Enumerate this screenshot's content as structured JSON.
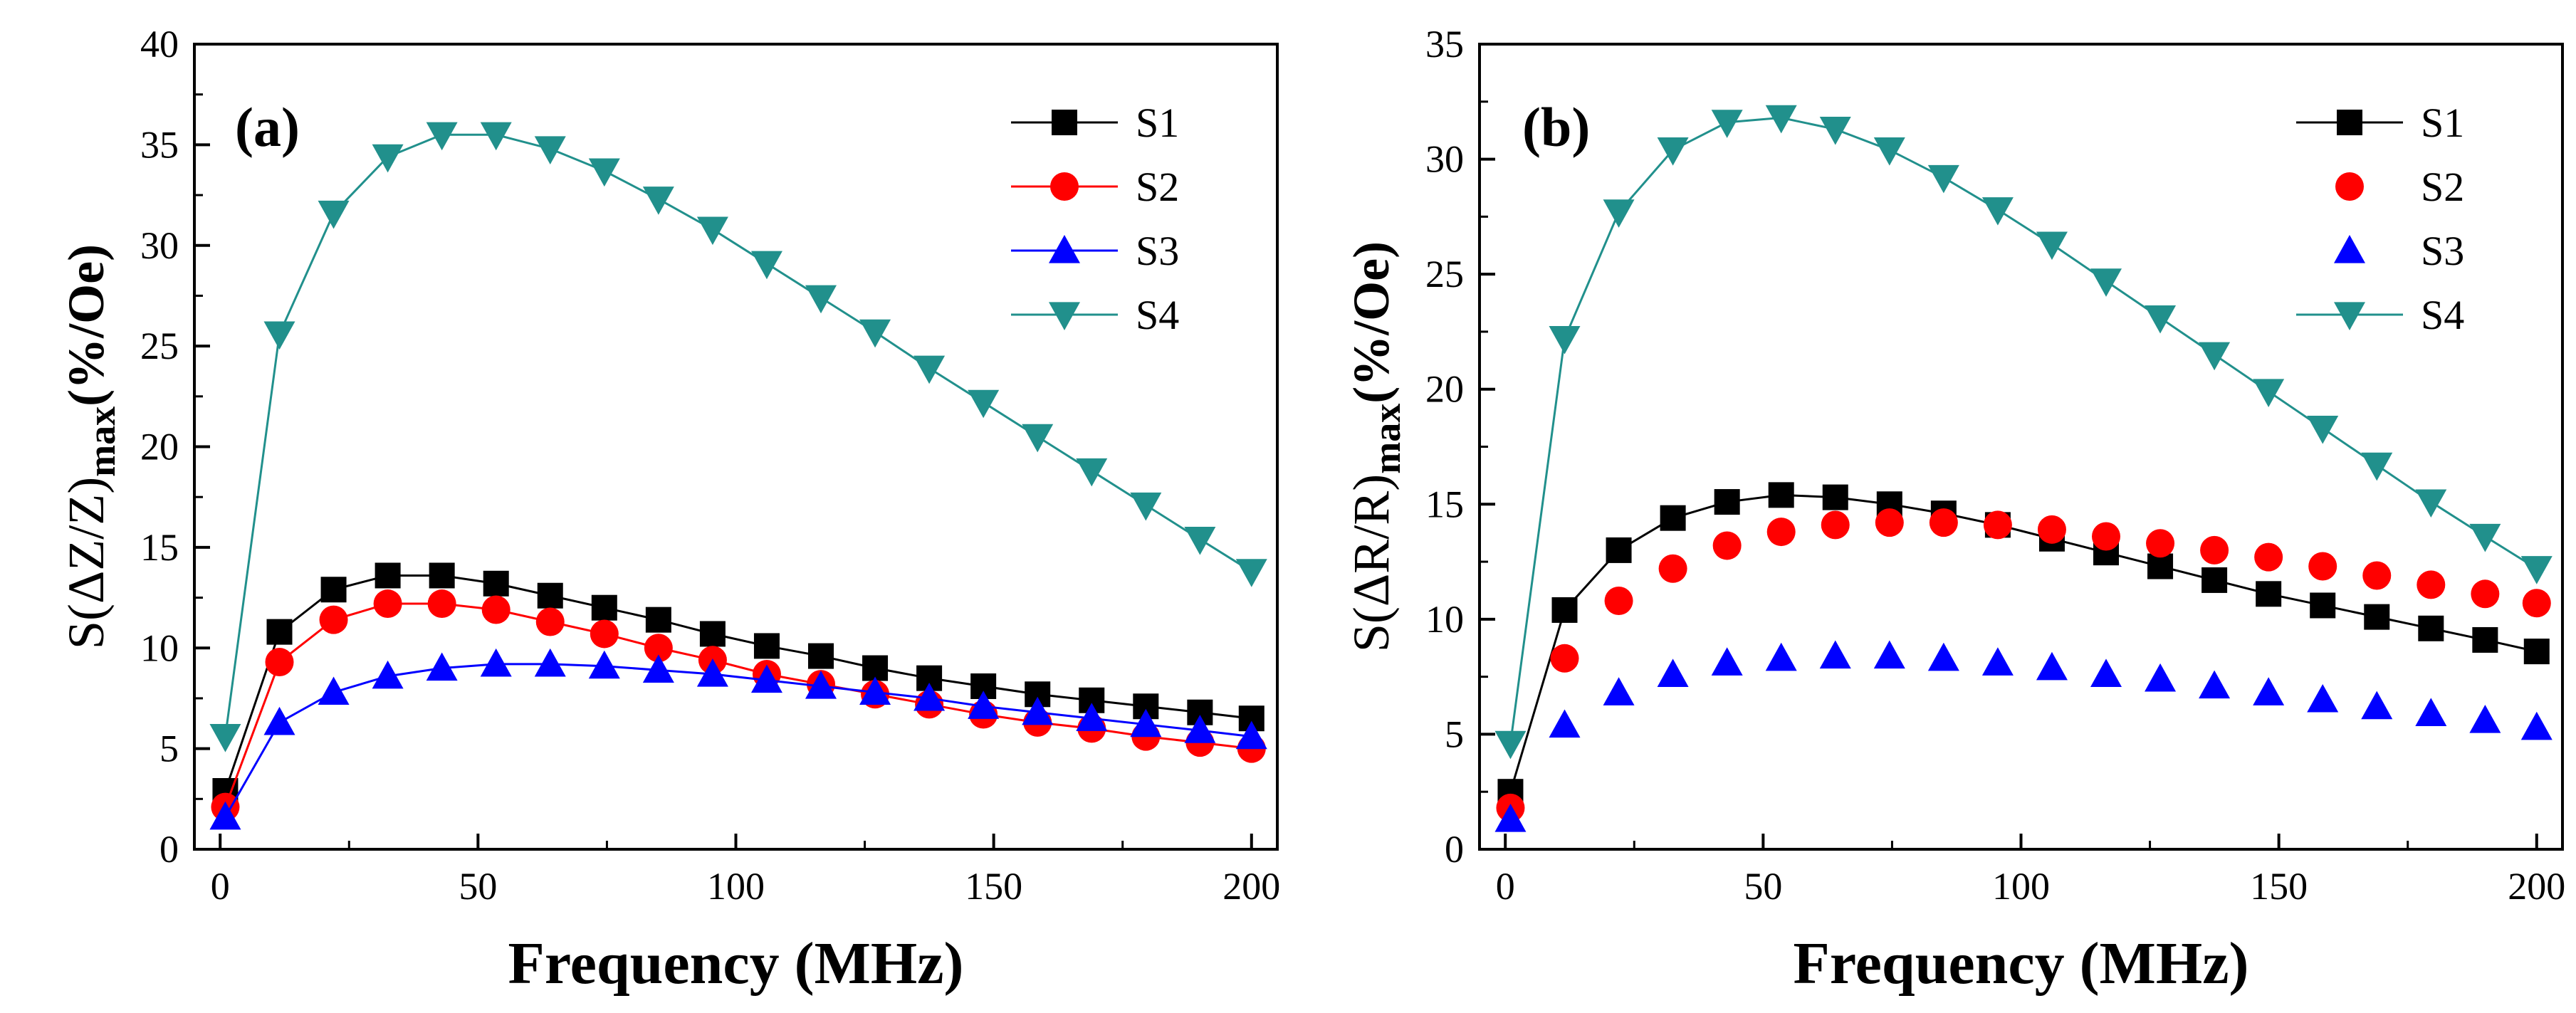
{
  "chart_data": [
    {
      "type": "line",
      "panel_label": "(a)",
      "title": "",
      "xlabel": "Frequency (MHz)",
      "ylabel_parts": {
        "lead": "S(ΔZ/Z)",
        "sub": "max",
        "tail": "(%/Oe)"
      },
      "xlim": [
        -5,
        205
      ],
      "ylim": [
        0,
        40
      ],
      "xticks": [
        0,
        50,
        100,
        150,
        200
      ],
      "yticks": [
        0,
        5,
        10,
        15,
        20,
        25,
        30,
        35,
        40
      ],
      "legend_position": "top-right",
      "x": [
        1,
        11.5,
        22,
        32.5,
        43,
        53.5,
        64,
        74.5,
        85,
        95.5,
        106,
        116.5,
        127,
        137.5,
        148,
        158.5,
        169,
        179.5,
        190,
        200
      ],
      "series": [
        {
          "name": "S1",
          "color": "#000000",
          "marker": "square",
          "line": true,
          "values": [
            2.9,
            10.8,
            12.9,
            13.6,
            13.6,
            13.2,
            12.6,
            12.0,
            11.4,
            10.7,
            10.1,
            9.6,
            9.0,
            8.5,
            8.1,
            7.7,
            7.4,
            7.1,
            6.8,
            6.5
          ]
        },
        {
          "name": "S2",
          "color": "#ff0000",
          "marker": "circle",
          "line": true,
          "values": [
            2.1,
            9.3,
            11.4,
            12.2,
            12.2,
            11.9,
            11.3,
            10.7,
            10.0,
            9.4,
            8.7,
            8.2,
            7.7,
            7.2,
            6.7,
            6.3,
            6.0,
            5.6,
            5.3,
            5.0
          ]
        },
        {
          "name": "S3",
          "color": "#0000ff",
          "marker": "triangle-up",
          "line": true,
          "values": [
            1.6,
            6.3,
            7.8,
            8.6,
            9.0,
            9.2,
            9.2,
            9.1,
            8.9,
            8.7,
            8.4,
            8.1,
            7.8,
            7.5,
            7.1,
            6.8,
            6.5,
            6.2,
            5.9,
            5.6
          ]
        },
        {
          "name": "S4",
          "color": "#21908c",
          "marker": "triangle-down",
          "line": true,
          "values": [
            5.6,
            25.6,
            31.6,
            34.4,
            35.5,
            35.5,
            34.8,
            33.7,
            32.3,
            30.8,
            29.1,
            27.4,
            25.7,
            23.9,
            22.2,
            20.5,
            18.8,
            17.1,
            15.4,
            13.8
          ]
        }
      ]
    },
    {
      "type": "line",
      "panel_label": "(b)",
      "title": "",
      "xlabel": "Frequency (MHz)",
      "ylabel_parts": {
        "lead": "S(ΔR/R)",
        "sub": "max",
        "tail": "(%/Oe)"
      },
      "xlim": [
        -5,
        205
      ],
      "ylim": [
        0,
        35
      ],
      "xticks": [
        0,
        50,
        100,
        150,
        200
      ],
      "yticks": [
        0,
        5,
        10,
        15,
        20,
        25,
        30,
        35
      ],
      "legend_position": "top-right",
      "x": [
        1,
        11.5,
        22,
        32.5,
        43,
        53.5,
        64,
        74.5,
        85,
        95.5,
        106,
        116.5,
        127,
        137.5,
        148,
        158.5,
        169,
        179.5,
        190,
        200
      ],
      "series": [
        {
          "name": "S1",
          "color": "#000000",
          "marker": "square",
          "line": true,
          "values": [
            2.5,
            10.4,
            13.0,
            14.4,
            15.1,
            15.4,
            15.3,
            15.0,
            14.6,
            14.1,
            13.5,
            12.9,
            12.3,
            11.7,
            11.1,
            10.6,
            10.1,
            9.6,
            9.1,
            8.6
          ]
        },
        {
          "name": "S2",
          "color": "#ff0000",
          "marker": "circle",
          "line": false,
          "values": [
            1.8,
            8.3,
            10.8,
            12.2,
            13.2,
            13.8,
            14.1,
            14.2,
            14.2,
            14.1,
            13.9,
            13.6,
            13.3,
            13.0,
            12.7,
            12.3,
            11.9,
            11.5,
            11.1,
            10.7
          ]
        },
        {
          "name": "S3",
          "color": "#0000ff",
          "marker": "triangle-up",
          "line": false,
          "values": [
            1.3,
            5.4,
            6.8,
            7.6,
            8.1,
            8.3,
            8.4,
            8.4,
            8.3,
            8.1,
            7.9,
            7.6,
            7.4,
            7.1,
            6.8,
            6.5,
            6.2,
            5.9,
            5.6,
            5.3
          ]
        },
        {
          "name": "S4",
          "color": "#21908c",
          "marker": "triangle-down",
          "line": true,
          "values": [
            4.6,
            22.2,
            27.7,
            30.4,
            31.6,
            31.8,
            31.3,
            30.4,
            29.2,
            27.8,
            26.3,
            24.7,
            23.1,
            21.5,
            19.9,
            18.3,
            16.7,
            15.1,
            13.6,
            12.2
          ]
        }
      ]
    }
  ]
}
